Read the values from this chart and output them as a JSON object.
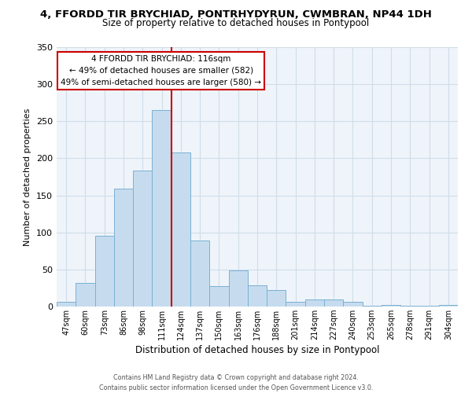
{
  "title": "4, FFORDD TIR BRYCHIAD, PONTRHYDYRUN, CWMBRAN, NP44 1DH",
  "subtitle": "Size of property relative to detached houses in Pontypool",
  "xlabel": "Distribution of detached houses by size in Pontypool",
  "ylabel": "Number of detached properties",
  "bar_labels": [
    "47sqm",
    "60sqm",
    "73sqm",
    "86sqm",
    "98sqm",
    "111sqm",
    "124sqm",
    "137sqm",
    "150sqm",
    "163sqm",
    "176sqm",
    "188sqm",
    "201sqm",
    "214sqm",
    "227sqm",
    "240sqm",
    "253sqm",
    "265sqm",
    "278sqm",
    "291sqm",
    "304sqm"
  ],
  "bar_values": [
    6,
    32,
    95,
    159,
    184,
    265,
    208,
    89,
    28,
    49,
    29,
    22,
    6,
    10,
    10,
    6,
    1,
    2,
    1,
    1,
    2
  ],
  "bar_color": "#c6dcee",
  "bar_edge_color": "#7ab0d4",
  "vline_x": 5.5,
  "vline_color": "#cc0000",
  "ylim": [
    0,
    350
  ],
  "yticks": [
    0,
    50,
    100,
    150,
    200,
    250,
    300,
    350
  ],
  "annotation_title": "4 FFORDD TIR BRYCHIAD: 116sqm",
  "annotation_line1": "← 49% of detached houses are smaller (582)",
  "annotation_line2": "49% of semi-detached houses are larger (580) →",
  "annotation_box_color": "#ffffff",
  "annotation_box_edge": "#cc0000",
  "footer1": "Contains HM Land Registry data © Crown copyright and database right 2024.",
  "footer2": "Contains public sector information licensed under the Open Government Licence v3.0.",
  "background_color": "#ffffff",
  "plot_bg_color": "#eef4fa",
  "grid_color": "#d0dde8"
}
